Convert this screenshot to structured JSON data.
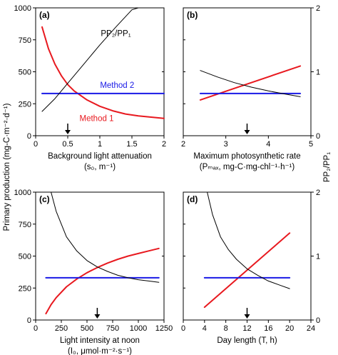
{
  "figure": {
    "shared_ylabel_left": "Primary production (mg-C·m⁻²·d⁻¹)",
    "shared_ylabel_right": "PP₂/PP₁"
  },
  "chart_data": [
    {
      "panel": "(a)",
      "type": "line",
      "xlabel_line1": "Background light attenuation",
      "xlabel_line2": "(s₀, m⁻¹)",
      "xlim": [
        0,
        2
      ],
      "xticks": [
        0,
        0.5,
        1,
        1.5,
        2
      ],
      "xtick_labels": [
        "0",
        "0.5",
        "1",
        "1.5",
        "2"
      ],
      "ylim": [
        0,
        1000
      ],
      "yticks": [
        0,
        250,
        500,
        750,
        1000
      ],
      "ytick_labels": [
        "0",
        "250",
        "500",
        "750",
        "1000"
      ],
      "y2lim": [
        0,
        2
      ],
      "y2ticks": [
        0,
        1,
        2
      ],
      "arrow_x": 0.5,
      "series": [
        {
          "name": "Method 1",
          "color": "#e8191f",
          "axis": "left",
          "x": [
            0.1,
            0.2,
            0.3,
            0.4,
            0.5,
            0.6,
            0.8,
            1.0,
            1.2,
            1.4,
            1.6,
            1.8,
            2.0
          ],
          "y": [
            850,
            680,
            560,
            470,
            400,
            350,
            280,
            230,
            195,
            170,
            155,
            145,
            135
          ]
        },
        {
          "name": "Method 2",
          "color": "#1a1ae6",
          "axis": "left",
          "x": [
            0.1,
            2.0
          ],
          "y": [
            330,
            330
          ]
        },
        {
          "name": "PP₂/PP₁",
          "color": "#000000",
          "axis": "right",
          "x": [
            0.1,
            0.3,
            0.5,
            0.75,
            1.0,
            1.25,
            1.5,
            1.6
          ],
          "y": [
            0.38,
            0.58,
            0.82,
            1.12,
            1.42,
            1.7,
            1.97,
            2.0
          ]
        }
      ],
      "annotations": [
        {
          "text": "PP₂/PP₁",
          "x": 1.25,
          "y": 780
        },
        {
          "text": "Method 2",
          "x": 1.27,
          "y": 375
        },
        {
          "text": "Method 1",
          "x": 0.95,
          "y": 115
        }
      ]
    },
    {
      "panel": "(b)",
      "type": "line",
      "xlabel_line1": "Maximum photosynthetic rate",
      "xlabel_line2": "(Pₘₐₓ, mg-C·mg-chl⁻¹·h⁻¹)",
      "xlim": [
        2,
        5
      ],
      "xticks": [
        2,
        3,
        4,
        5
      ],
      "xtick_labels": [
        "2",
        "3",
        "4",
        "5"
      ],
      "ylim": [
        0,
        1000
      ],
      "y2lim": [
        0,
        2
      ],
      "y2ticks": [
        0,
        1,
        2
      ],
      "y2tick_labels": [
        "0",
        "1",
        "2"
      ],
      "arrow_x": 3.5,
      "series": [
        {
          "name": "Method 1",
          "color": "#e8191f",
          "axis": "left",
          "x": [
            2.4,
            4.75
          ],
          "y": [
            280,
            545
          ]
        },
        {
          "name": "Method 2",
          "color": "#1a1ae6",
          "axis": "left",
          "x": [
            2.4,
            4.75
          ],
          "y": [
            330,
            330
          ]
        },
        {
          "name": "PP₂/PP₁",
          "color": "#000000",
          "axis": "right",
          "x": [
            2.4,
            2.8,
            3.2,
            3.6,
            4.0,
            4.4,
            4.75
          ],
          "y": [
            1.02,
            0.92,
            0.83,
            0.76,
            0.7,
            0.65,
            0.61
          ]
        }
      ]
    },
    {
      "panel": "(c)",
      "type": "line",
      "xlabel_line1": "Light intensity at noon",
      "xlabel_line2": "(I₀, μmol·m⁻²·s⁻¹)",
      "xlim": [
        0,
        1250
      ],
      "xticks": [
        0,
        250,
        500,
        750,
        1000,
        1250
      ],
      "xtick_labels": [
        "0",
        "250",
        "500",
        "750",
        "1000",
        "1250"
      ],
      "ylim": [
        0,
        1000
      ],
      "yticks": [
        0,
        250,
        500,
        750,
        1000
      ],
      "ytick_labels": [
        "0",
        "250",
        "500",
        "750",
        "1000"
      ],
      "y2lim": [
        0,
        2
      ],
      "arrow_x": 600,
      "series": [
        {
          "name": "Method 1",
          "color": "#e8191f",
          "axis": "left",
          "x": [
            100,
            150,
            200,
            300,
            400,
            500,
            600,
            700,
            800,
            900,
            1000,
            1100,
            1200
          ],
          "y": [
            50,
            120,
            175,
            260,
            320,
            370,
            410,
            445,
            475,
            500,
            520,
            540,
            560
          ]
        },
        {
          "name": "Method 2",
          "color": "#1a1ae6",
          "axis": "left",
          "x": [
            100,
            1200
          ],
          "y": [
            330,
            330
          ]
        },
        {
          "name": "PP₂/PP₁",
          "color": "#000000",
          "axis": "right",
          "x": [
            150,
            200,
            300,
            400,
            500,
            600,
            700,
            800,
            900,
            1000,
            1100,
            1200
          ],
          "y": [
            2.0,
            1.7,
            1.3,
            1.08,
            0.93,
            0.83,
            0.76,
            0.7,
            0.66,
            0.63,
            0.61,
            0.59
          ]
        }
      ]
    },
    {
      "panel": "(d)",
      "type": "line",
      "xlabel_line1": "Day length (T, h)",
      "xlabel_line2": "",
      "xlim": [
        0,
        24
      ],
      "xticks": [
        0,
        4,
        8,
        12,
        16,
        20,
        24
      ],
      "xtick_labels": [
        "0",
        "4",
        "8",
        "12",
        "16",
        "20",
        "24"
      ],
      "ylim": [
        0,
        1000
      ],
      "y2lim": [
        0,
        2
      ],
      "y2ticks": [
        0,
        1,
        2
      ],
      "y2tick_labels": [
        "0",
        "1",
        "2"
      ],
      "arrow_x": 12,
      "series": [
        {
          "name": "Method 1",
          "color": "#e8191f",
          "axis": "left",
          "x": [
            4,
            20
          ],
          "y": [
            100,
            680
          ]
        },
        {
          "name": "Method 2",
          "color": "#1a1ae6",
          "axis": "left",
          "x": [
            4,
            20
          ],
          "y": [
            330,
            330
          ]
        },
        {
          "name": "PP₂/PP₁",
          "color": "#000000",
          "axis": "right",
          "x": [
            4.5,
            5.5,
            7,
            8.5,
            10,
            12,
            14,
            16,
            18,
            20
          ],
          "y": [
            2.0,
            1.65,
            1.3,
            1.1,
            0.95,
            0.8,
            0.7,
            0.61,
            0.55,
            0.49
          ]
        }
      ]
    }
  ]
}
